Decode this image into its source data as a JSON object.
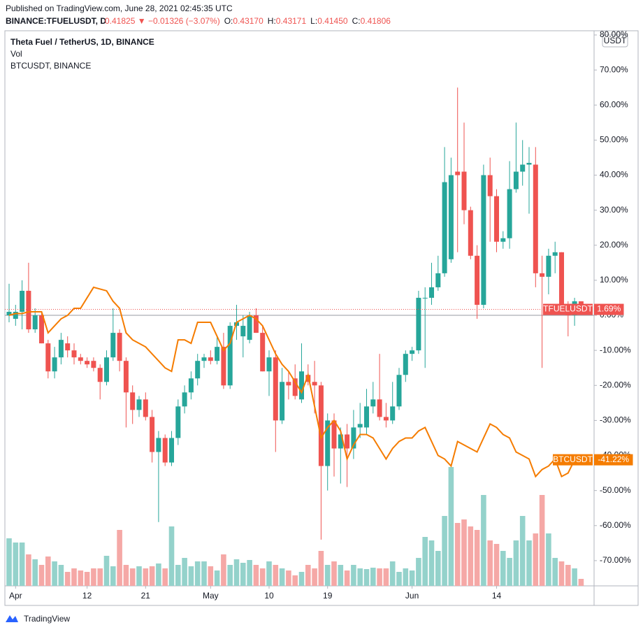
{
  "header": {
    "published": "Published on TradingView.com, June 28, 2021 02:45:35 UTC",
    "symbol": "BINANCE:TFUELUSDT, D",
    "last": "0.41825",
    "arrow": "▼",
    "change": "−0.01326 (−3.07%)",
    "ohlc": [
      {
        "key": "O:",
        "value": "0.43170"
      },
      {
        "key": "H:",
        "value": "0.43171"
      },
      {
        "key": "L:",
        "value": "0.41450"
      },
      {
        "key": "C:",
        "value": "0.41806"
      }
    ]
  },
  "chart_data": {
    "type": "candlestick",
    "title": "Theta Fuel / TetherUS, 1D, BINANCE",
    "volume_label": "Vol",
    "currency": "USDT",
    "up_color": "#26a69a",
    "down_color": "#ef5350",
    "volume_up_color": "#94d2cb",
    "volume_down_color": "#f5a8a6",
    "open": [
      0,
      -1,
      1,
      7,
      -4,
      0,
      -8,
      -16,
      -12,
      -8,
      -10,
      -12,
      -13,
      -13,
      -15,
      -19,
      -12,
      -5,
      -13,
      -22,
      -27,
      -24,
      -29,
      -39,
      -35,
      -42,
      -35,
      -26,
      -22,
      -18,
      -13,
      -12,
      -13,
      -9,
      -20,
      -3,
      -6,
      -7,
      0,
      -5,
      -16,
      -12,
      -30,
      -19,
      -18,
      -24,
      -17,
      -19,
      -20,
      -43,
      -30,
      -38,
      -34,
      -38,
      -32,
      -32,
      -26,
      -24,
      -29,
      -30,
      -26,
      -17,
      -11,
      -10,
      5,
      5,
      8,
      12,
      16,
      41,
      41,
      30,
      17,
      3,
      40,
      34,
      21,
      22,
      36,
      41,
      43,
      43,
      12,
      11,
      17,
      18,
      3,
      0,
      4
    ],
    "high": [
      9,
      3,
      10,
      15,
      2,
      1,
      -7,
      -9,
      -5,
      -6,
      -8,
      -11,
      -12,
      -12,
      -14,
      -10,
      2,
      -4,
      -12,
      -20,
      -23,
      -22,
      -27,
      -33,
      -34,
      -33,
      -24,
      -20,
      -16,
      -11,
      -11,
      -10,
      -6,
      -5,
      -2,
      3,
      0,
      1,
      2,
      -3,
      -10,
      -10,
      -15,
      -16,
      -14,
      -8,
      -14,
      -13,
      -19,
      -28,
      -28,
      -32,
      -31,
      -27,
      -25,
      -21,
      -19,
      -11,
      -25,
      -19,
      -15,
      -10,
      -9,
      7,
      8,
      15,
      17,
      48,
      45,
      65,
      55,
      31,
      20,
      43,
      45,
      36,
      24,
      44,
      55,
      50,
      48,
      48,
      17,
      19,
      21,
      18,
      4,
      5,
      4
    ],
    "low": [
      -2,
      -3,
      -4,
      -5,
      -5,
      -8,
      -18,
      -18,
      -14,
      -12,
      -14,
      -14,
      -15,
      -16,
      -24,
      -20,
      -13,
      -16,
      -32,
      -31,
      -29,
      -30,
      -42,
      -59,
      -43,
      -43,
      -37,
      -28,
      -24,
      -20,
      -15,
      -14,
      -14,
      -21,
      -21,
      -7,
      -12,
      -8,
      -5,
      -16,
      -23,
      -39,
      -31,
      -24,
      -24,
      -25,
      -20,
      -28,
      -64,
      -50,
      -46,
      -48,
      -49,
      -41,
      -35,
      -34,
      -28,
      -30,
      -32,
      -31,
      -27,
      -19,
      -13,
      -11,
      -15,
      3,
      7,
      11,
      15,
      18,
      26,
      16,
      -1,
      2,
      21,
      18,
      19,
      19,
      35,
      37,
      29,
      8,
      -15,
      6,
      12,
      1,
      -6,
      -3,
      1
    ],
    "close": [
      1,
      1,
      7,
      -4,
      0,
      -8,
      -16,
      -12,
      -7,
      -10,
      -12,
      -13,
      -14,
      -15,
      -19,
      -12,
      -5,
      -13,
      -22,
      -27,
      -24,
      -29,
      -39,
      -35,
      -42,
      -35,
      -26,
      -22,
      -18,
      -13,
      -12,
      -13,
      -9,
      -20,
      -3,
      -2,
      -3,
      0,
      -5,
      -16,
      -12,
      -30,
      -19,
      -20,
      -23,
      -16,
      -19,
      -20,
      -43,
      -30,
      -38,
      -34,
      -38,
      -32,
      -31,
      -26,
      -24,
      -29,
      -30,
      -26,
      -17,
      -11,
      -10,
      5,
      5,
      8,
      12,
      38,
      40,
      40,
      30,
      17,
      3,
      40,
      34,
      21,
      22,
      36,
      41,
      43,
      43.5,
      12,
      11,
      17,
      18,
      3,
      0,
      4,
      1.69
    ],
    "volume": [
      68,
      62,
      62,
      45,
      38,
      30,
      42,
      35,
      30,
      20,
      25,
      22,
      20,
      25,
      25,
      43,
      28,
      80,
      30,
      25,
      28,
      25,
      28,
      32,
      25,
      85,
      30,
      40,
      28,
      35,
      35,
      28,
      22,
      45,
      30,
      38,
      33,
      37,
      30,
      25,
      35,
      30,
      25,
      22,
      15,
      20,
      30,
      25,
      50,
      30,
      35,
      30,
      22,
      30,
      25,
      24,
      26,
      25,
      25,
      35,
      20,
      25,
      22,
      40,
      70,
      65,
      50,
      100,
      170,
      90,
      95,
      85,
      80,
      130,
      65,
      60,
      50,
      40,
      65,
      100,
      65,
      75,
      130,
      75,
      40,
      35,
      30,
      25,
      10
    ],
    "overlay": {
      "name": "BTCUSDT, BINANCE",
      "color": "#f57c00",
      "values": [
        0,
        0.5,
        0.5,
        1,
        1,
        1,
        -5,
        -3,
        -1,
        0,
        2,
        2,
        5,
        8,
        7.5,
        7,
        4,
        2,
        -5,
        -7,
        -8,
        -9,
        -11,
        -13,
        -15,
        -16,
        -7,
        -7,
        -8,
        -2,
        -2,
        -2,
        -6,
        -10,
        -8,
        -2,
        -1,
        0,
        -1,
        -3,
        -7,
        -11,
        -14,
        -16,
        -19,
        -22,
        -17,
        -26,
        -35,
        -32,
        -30,
        -33,
        -41,
        -37,
        -34,
        -34,
        -35,
        -38,
        -41,
        -38,
        -36,
        -35,
        -35,
        -33,
        -32,
        -36,
        -40,
        -41,
        -43,
        -36,
        -37,
        -38,
        -39,
        -35,
        -31,
        -32,
        -34,
        -35,
        -39,
        -40,
        -41,
        -46,
        -44,
        -43,
        -41,
        -46,
        -45,
        -41.22,
        null
      ]
    },
    "price_tags": [
      {
        "name": "TFUELUSDT",
        "value": 1.69,
        "label": "1.69%",
        "color": "#ef5350"
      },
      {
        "name": "BTCUSDT",
        "value": -41.22,
        "label": "-41.22%",
        "color": "#f57c00"
      }
    ],
    "xticks": [
      {
        "value": 1,
        "label": "Apr"
      },
      {
        "value": 12,
        "label": "12"
      },
      {
        "value": 21,
        "label": "21"
      },
      {
        "value": 31,
        "label": "May"
      },
      {
        "value": 40,
        "label": "10"
      },
      {
        "value": 49,
        "label": "19"
      },
      {
        "value": 62,
        "label": "Jun"
      },
      {
        "value": 75,
        "label": "14"
      }
    ],
    "ylim": [
      -77.2,
      81.2
    ],
    "yticks": [
      {
        "value": -70,
        "label": "-70.00%"
      },
      {
        "value": -60,
        "label": "-60.00%"
      },
      {
        "value": -50,
        "label": "-50.00%"
      },
      {
        "value": -40,
        "label": "-40.00%"
      },
      {
        "value": -30,
        "label": "-30.00%"
      },
      {
        "value": -20,
        "label": "-20.00%"
      },
      {
        "value": -10,
        "label": "-10.00%"
      },
      {
        "value": 0,
        "label": "0.00%"
      },
      {
        "value": 10,
        "label": "10.00%"
      },
      {
        "value": 20,
        "label": "20.00%"
      },
      {
        "value": 30,
        "label": "30.00%"
      },
      {
        "value": 40,
        "label": "40.00%"
      },
      {
        "value": 50,
        "label": "50.00%"
      },
      {
        "value": 60,
        "label": "60.00%"
      },
      {
        "value": 70,
        "label": "70.00%"
      },
      {
        "value": 80,
        "label": "80.00%"
      }
    ]
  },
  "footer": {
    "brand": "TradingView"
  }
}
